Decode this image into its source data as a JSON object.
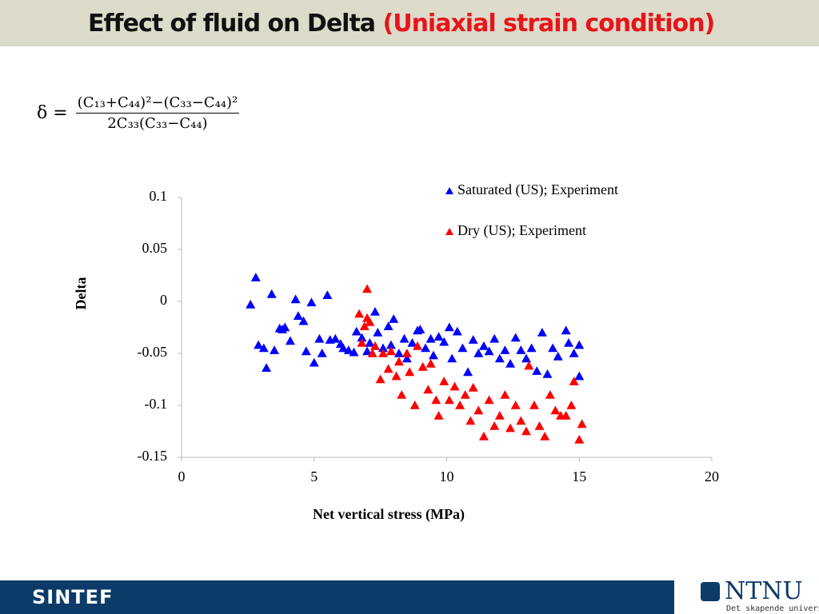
{
  "header": {
    "title": "Effect of fluid on Delta",
    "title_highlight": "(Uniaxial strain condition)"
  },
  "formula": {
    "lhs": "δ =",
    "numerator": "(C₁₃+C₄₄)²−(C₃₃−C₄₄)²",
    "denominator": "2C₃₃(C₃₃−C₄₄)"
  },
  "chart_data": {
    "type": "scatter",
    "xlabel": "Net vertical stress (MPa)",
    "ylabel": "Delta",
    "xlim": [
      0,
      20
    ],
    "xticks": [
      0,
      5,
      10,
      15,
      20
    ],
    "ylim": [
      -0.15,
      0.1
    ],
    "yticks": [
      0.1,
      0.05,
      0,
      -0.05,
      -0.1,
      -0.15
    ],
    "legend": "top-right",
    "series": [
      {
        "name": "Saturated (US); Experiment",
        "color": "#0000ff",
        "x": [
          2.6,
          2.8,
          2.9,
          3.1,
          3.2,
          3.4,
          3.5,
          3.7,
          3.8,
          3.9,
          4.1,
          4.3,
          4.4,
          4.6,
          4.7,
          4.9,
          5.0,
          5.2,
          5.3,
          5.5,
          5.6,
          5.8,
          6.0,
          6.1,
          6.3,
          6.5,
          6.6,
          6.8,
          7.0,
          7.1,
          7.3,
          7.4,
          7.6,
          7.8,
          7.9,
          8.0,
          8.2,
          8.4,
          8.5,
          8.7,
          8.9,
          9.0,
          9.2,
          9.4,
          9.5,
          9.7,
          9.9,
          10.1,
          10.2,
          10.4,
          10.6,
          10.8,
          11.0,
          11.2,
          11.4,
          11.6,
          11.8,
          12.0,
          12.2,
          12.4,
          12.6,
          12.8,
          13.0,
          13.2,
          13.4,
          13.6,
          13.8,
          14.0,
          14.2,
          14.5,
          14.6,
          14.8,
          15.0,
          15.0
        ],
        "y": [
          -0.003,
          0.023,
          -0.042,
          -0.045,
          -0.064,
          0.007,
          -0.047,
          -0.026,
          -0.027,
          -0.025,
          -0.038,
          0.002,
          -0.014,
          -0.019,
          -0.048,
          -0.001,
          -0.059,
          -0.036,
          -0.05,
          0.006,
          -0.037,
          -0.036,
          -0.041,
          -0.045,
          -0.047,
          -0.049,
          -0.029,
          -0.035,
          -0.048,
          -0.04,
          -0.01,
          -0.03,
          -0.045,
          -0.024,
          -0.042,
          -0.017,
          -0.05,
          -0.036,
          -0.055,
          -0.04,
          -0.028,
          -0.027,
          -0.045,
          -0.036,
          -0.052,
          -0.034,
          -0.039,
          -0.025,
          -0.055,
          -0.029,
          -0.045,
          -0.068,
          -0.037,
          -0.05,
          -0.043,
          -0.048,
          -0.036,
          -0.055,
          -0.047,
          -0.06,
          -0.035,
          -0.047,
          -0.055,
          -0.045,
          -0.067,
          -0.03,
          -0.07,
          -0.045,
          -0.053,
          -0.028,
          -0.04,
          -0.05,
          -0.072,
          -0.042
        ]
      },
      {
        "name": "Dry (US); Experiment",
        "color": "#ff0000",
        "x": [
          6.7,
          6.8,
          6.9,
          7.0,
          7.0,
          7.1,
          7.2,
          7.3,
          7.5,
          7.6,
          7.8,
          7.9,
          8.1,
          8.2,
          8.3,
          8.5,
          8.6,
          8.8,
          8.9,
          9.1,
          9.3,
          9.4,
          9.6,
          9.7,
          9.9,
          10.1,
          10.3,
          10.5,
          10.7,
          10.9,
          11.0,
          11.2,
          11.4,
          11.6,
          11.8,
          12.0,
          12.2,
          12.4,
          12.6,
          12.8,
          13.0,
          13.1,
          13.3,
          13.5,
          13.7,
          13.9,
          14.1,
          14.3,
          14.5,
          14.7,
          14.8,
          15.0,
          15.1
        ],
        "y": [
          -0.012,
          -0.04,
          -0.024,
          -0.016,
          0.012,
          -0.02,
          -0.05,
          -0.043,
          -0.075,
          -0.05,
          -0.065,
          -0.048,
          -0.072,
          -0.058,
          -0.09,
          -0.05,
          -0.068,
          -0.1,
          -0.043,
          -0.063,
          -0.085,
          -0.06,
          -0.095,
          -0.11,
          -0.077,
          -0.095,
          -0.082,
          -0.1,
          -0.09,
          -0.115,
          -0.083,
          -0.105,
          -0.13,
          -0.095,
          -0.12,
          -0.11,
          -0.09,
          -0.122,
          -0.1,
          -0.115,
          -0.125,
          -0.062,
          -0.1,
          -0.12,
          -0.13,
          -0.09,
          -0.105,
          -0.11,
          -0.11,
          -0.1,
          -0.077,
          -0.133,
          -0.118
        ]
      }
    ]
  },
  "footer": {
    "left_logo": "SINTEF",
    "right_logo": "NTNU",
    "right_tagline": "Det skapende universitet"
  }
}
